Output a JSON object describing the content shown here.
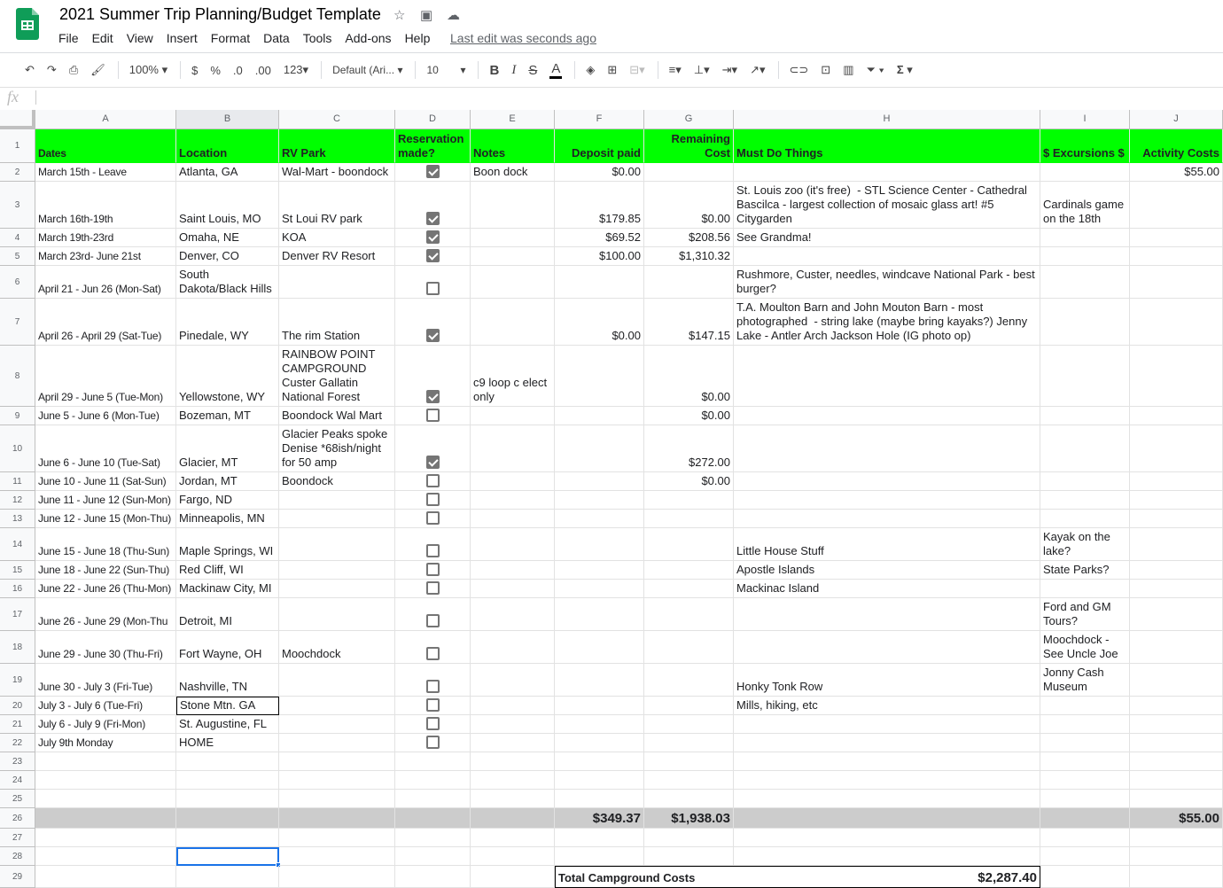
{
  "app": {
    "title": "2021 Summer Trip Planning/Budget Template",
    "last_edit": "Last edit was seconds ago",
    "menu": [
      "File",
      "Edit",
      "View",
      "Insert",
      "Format",
      "Data",
      "Tools",
      "Add-ons",
      "Help"
    ],
    "icons": [
      "star-icon",
      "move-to-folder-icon",
      "cloud-saved-icon"
    ]
  },
  "toolbar": {
    "zoom": "100%",
    "currency": "$",
    "percent": "%",
    "dec_less": ".0",
    "dec_more": ".00",
    "format": "123",
    "font": "Default (Ari...",
    "font_size": "10",
    "bold": "B",
    "italic": "I",
    "strike": "S",
    "text_color": "A",
    "sum": "Σ"
  },
  "formula_bar": {
    "fx": "fx",
    "value": ""
  },
  "columns": [
    "A",
    "B",
    "C",
    "D",
    "E",
    "F",
    "G",
    "H",
    "I",
    "J"
  ],
  "header": {
    "A": "Dates",
    "B": "Location",
    "C": "RV Park",
    "D": "Reservation made?",
    "E": "Notes",
    "F": "Deposit paid",
    "G": "Remaining Cost",
    "H": "Must Do Things",
    "I": "$ Excursions $",
    "J": "Activity Costs"
  },
  "rows": [
    {
      "A": "March 15th - Leave",
      "B": "Atlanta, GA",
      "C": "Wal-Mart - boondock",
      "D": true,
      "E": "Boon dock",
      "F": "$0.00",
      "G": "",
      "H": "",
      "I": "",
      "J": "$55.00"
    },
    {
      "A": "March 16th-19th",
      "B": "Saint Louis, MO",
      "C": "St Loui RV park",
      "D": true,
      "E": "",
      "F": "$179.85",
      "G": "$0.00",
      "H": "St. Louis zoo (it's free)  - STL Science Center - Cathedral Bascilca - largest collection of mosaic glass art! #5 Citygarden",
      "I": "Cardinals game on the 18th",
      "J": ""
    },
    {
      "A": "March 19th-23rd",
      "B": "Omaha, NE",
      "C": "KOA",
      "D": true,
      "E": "",
      "F": "$69.52",
      "G": "$208.56",
      "H": "See Grandma!",
      "I": "",
      "J": ""
    },
    {
      "A": "March 23rd- June 21st",
      "B": "Denver, CO",
      "C": "Denver RV Resort",
      "D": true,
      "E": "",
      "F": "$100.00",
      "G": "$1,310.32",
      "H": "",
      "I": "",
      "J": ""
    },
    {
      "A": "April 21 - Jun 26 (Mon-Sat)",
      "B": "South Dakota/Black Hills",
      "C": "",
      "D": false,
      "E": "",
      "F": "",
      "G": "",
      "H": "Rushmore, Custer, needles, windcave National Park - best burger?",
      "I": "",
      "J": ""
    },
    {
      "A": "April 26 - April 29 (Sat-Tue)",
      "B": "Pinedale, WY",
      "C": "The rim Station",
      "D": true,
      "E": "",
      "F": "$0.00",
      "G": "$147.15",
      "H": "T.A. Moulton Barn and John Mouton Barn - most photographed  - string lake (maybe bring kayaks?) Jenny Lake - Antler Arch Jackson Hole (IG photo op)",
      "I": "",
      "J": ""
    },
    {
      "A": "April 29 - June 5 (Tue-Mon)",
      "B": "Yellowstone, WY",
      "C": "RAINBOW POINT CAMPGROUND Custer Gallatin National Forest",
      "D": true,
      "E": "c9 loop c elect only",
      "F": "",
      "G": "$0.00",
      "H": "",
      "I": "",
      "J": ""
    },
    {
      "A": "June 5 - June 6 (Mon-Tue)",
      "B": "Bozeman, MT",
      "C": "Boondock Wal Mart",
      "D": false,
      "E": "",
      "F": "",
      "G": "$0.00",
      "H": "",
      "I": "",
      "J": ""
    },
    {
      "A": "June 6 - June 10 (Tue-Sat)",
      "B": "Glacier, MT",
      "C": "Glacier Peaks spoke Denise *68ish/night for 50 amp",
      "D": true,
      "E": "",
      "F": "",
      "G": "$272.00",
      "H": "",
      "I": "",
      "J": ""
    },
    {
      "A": "June 10 - June 11 (Sat-Sun)",
      "B": "Jordan, MT",
      "C": "Boondock",
      "D": false,
      "E": "",
      "F": "",
      "G": "$0.00",
      "H": "",
      "I": "",
      "J": ""
    },
    {
      "A": "June 11 - June 12 (Sun-Mon)",
      "B": "Fargo, ND",
      "C": "",
      "D": false,
      "E": "",
      "F": "",
      "G": "",
      "H": "",
      "I": "",
      "J": ""
    },
    {
      "A": "June 12 - June 15 (Mon-Thu)",
      "B": "Minneapolis, MN",
      "C": "",
      "D": false,
      "E": "",
      "F": "",
      "G": "",
      "H": "",
      "I": "",
      "J": ""
    },
    {
      "A": "June 15 - June 18 (Thu-Sun)",
      "B": "Maple Springs, WI",
      "C": "",
      "D": false,
      "E": "",
      "F": "",
      "G": "",
      "H": "Little House Stuff",
      "I": "Kayak on the lake?",
      "J": ""
    },
    {
      "A": "June 18 - June 22 (Sun-Thu)",
      "B": "Red Cliff, WI",
      "C": "",
      "D": false,
      "E": "",
      "F": "",
      "G": "",
      "H": "Apostle Islands",
      "I": "State Parks?",
      "J": ""
    },
    {
      "A": "June 22 - June 26 (Thu-Mon)",
      "B": "Mackinaw City, MI",
      "C": "",
      "D": false,
      "E": "",
      "F": "",
      "G": "",
      "H": "Mackinac Island",
      "I": "",
      "J": ""
    },
    {
      "A": "June 26 - June 29 (Mon-Thu",
      "B": "Detroit, MI",
      "C": "",
      "D": false,
      "E": "",
      "F": "",
      "G": "",
      "H": "",
      "I": "Ford and GM Tours?",
      "J": ""
    },
    {
      "A": "June 29 - June 30 (Thu-Fri)",
      "B": "Fort Wayne, OH",
      "C": "Moochdock",
      "D": false,
      "E": "",
      "F": "",
      "G": "",
      "H": "",
      "I": "Moochdock - See Uncle Joe",
      "J": ""
    },
    {
      "A": "June 30 - July 3 (Fri-Tue)",
      "B": "Nashville, TN",
      "C": "",
      "D": false,
      "E": "",
      "F": "",
      "G": "",
      "H": "Honky Tonk Row",
      "I": "Jonny Cash Museum",
      "J": ""
    },
    {
      "A": "July 3 - July 6 (Tue-Fri)",
      "B": "Stone Mtn. GA",
      "C": "",
      "D": false,
      "E": "",
      "F": "",
      "G": "",
      "H": "Mills, hiking, etc",
      "I": "",
      "J": ""
    },
    {
      "A": "July 6 - July 9 (Fri-Mon)",
      "B": "St. Augustine, FL",
      "C": "",
      "D": false,
      "E": "",
      "F": "",
      "G": "",
      "H": "",
      "I": "",
      "J": ""
    },
    {
      "A": "July 9th Monday",
      "B": "HOME",
      "C": "",
      "D": false,
      "E": "",
      "F": "",
      "G": "",
      "H": "",
      "I": "",
      "J": ""
    }
  ],
  "totals": {
    "F": "$349.37",
    "G": "$1,938.03",
    "J": "$55.00"
  },
  "campground_total": {
    "label": "Total Campground Costs",
    "value": "$2,287.40"
  },
  "colors": {
    "header_green": "#00ff00",
    "total_gray": "#cccccc",
    "selection_blue": "#1a73e8"
  }
}
